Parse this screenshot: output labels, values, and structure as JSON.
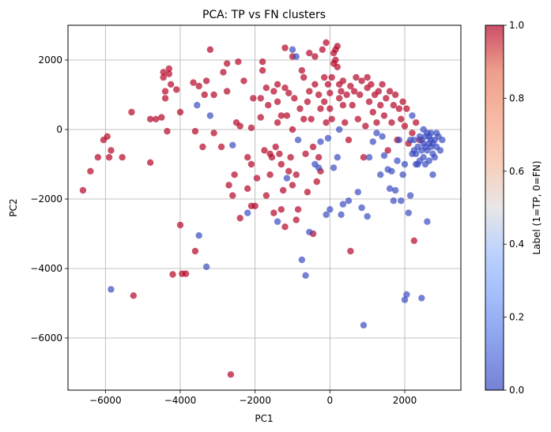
{
  "chart_data": {
    "type": "scatter",
    "title": "PCA: TP vs FN clusters",
    "xlabel": "PC1",
    "ylabel": "PC2",
    "xlim": [
      -7000,
      3500
    ],
    "ylim": [
      -7500,
      3000
    ],
    "xticks": [
      -6000,
      -4000,
      -2000,
      0,
      2000
    ],
    "yticks": [
      -6000,
      -4000,
      -2000,
      0,
      2000
    ],
    "xtick_labels": [
      "−6000",
      "−4000",
      "−2000",
      "0",
      "2000"
    ],
    "ytick_labels": [
      "−6000",
      "−4000",
      "−2000",
      "0",
      "2000"
    ],
    "grid": true,
    "colorbar": {
      "label": "Label (1=TP, 0=FN)",
      "range": [
        0,
        1
      ],
      "ticks": [
        0.0,
        0.2,
        0.4,
        0.6,
        0.8,
        1.0
      ],
      "tick_labels": [
        "0.0",
        "0.2",
        "0.4",
        "0.6",
        "0.8",
        "1.0"
      ],
      "colormap": "coolwarm",
      "color_low": "#3b4cc0",
      "color_high": "#b40426"
    },
    "series": [
      {
        "label_value": 1,
        "color": "#b40426",
        "points": [
          [
            -6600,
            -1750
          ],
          [
            -6400,
            -1200
          ],
          [
            -6200,
            -800
          ],
          [
            -6050,
            -300
          ],
          [
            -5950,
            -200
          ],
          [
            -5900,
            -800
          ],
          [
            -5850,
            -600
          ],
          [
            -5550,
            -800
          ],
          [
            -5300,
            500
          ],
          [
            -5250,
            -4780
          ],
          [
            -4800,
            -950
          ],
          [
            -4800,
            300
          ],
          [
            -4650,
            300
          ],
          [
            -4500,
            350
          ],
          [
            -4450,
            1500
          ],
          [
            -4450,
            1650
          ],
          [
            -4400,
            1100
          ],
          [
            -4400,
            900
          ],
          [
            -4350,
            -50
          ],
          [
            -4300,
            1750
          ],
          [
            -4300,
            1600
          ],
          [
            -4250,
            1300
          ],
          [
            -4200,
            -4170
          ],
          [
            -4100,
            1150
          ],
          [
            -4000,
            500
          ],
          [
            -4000,
            -2750
          ],
          [
            -3950,
            -4150
          ],
          [
            -3850,
            -4150
          ],
          [
            -3650,
            1350
          ],
          [
            -3600,
            -50
          ],
          [
            -3600,
            -3500
          ],
          [
            -3500,
            1250
          ],
          [
            -3400,
            -500
          ],
          [
            -3350,
            1000
          ],
          [
            -3300,
            1400
          ],
          [
            -3200,
            2300
          ],
          [
            -3100,
            1000
          ],
          [
            -3100,
            -100
          ],
          [
            -2900,
            -500
          ],
          [
            -2850,
            1650
          ],
          [
            -2750,
            1100
          ],
          [
            -2750,
            1900
          ],
          [
            -2700,
            -1600
          ],
          [
            -2650,
            -7050
          ],
          [
            -2600,
            -1900
          ],
          [
            -2550,
            -1300
          ],
          [
            -2500,
            200
          ],
          [
            -2450,
            1950
          ],
          [
            -2400,
            -2550
          ],
          [
            -2400,
            100
          ],
          [
            -2300,
            1400
          ],
          [
            -2200,
            -800
          ],
          [
            -2200,
            -1700
          ],
          [
            -2100,
            -2200
          ],
          [
            -2100,
            -1000
          ],
          [
            -2100,
            50
          ],
          [
            -2050,
            900
          ],
          [
            -2000,
            -2200
          ],
          [
            -1950,
            -1400
          ],
          [
            -1850,
            350
          ],
          [
            -1850,
            900
          ],
          [
            -1800,
            1950
          ],
          [
            -1800,
            1700
          ],
          [
            -1750,
            -600
          ],
          [
            -1700,
            1200
          ],
          [
            -1700,
            -1900
          ],
          [
            -1650,
            700
          ],
          [
            -1600,
            -1300
          ],
          [
            -1600,
            -700
          ],
          [
            -1550,
            -800
          ],
          [
            -1500,
            -2400
          ],
          [
            -1500,
            1100
          ],
          [
            -1450,
            -500
          ],
          [
            -1400,
            200
          ],
          [
            -1400,
            800
          ],
          [
            -1400,
            1300
          ],
          [
            -1350,
            -700
          ],
          [
            -1300,
            -2300
          ],
          [
            -1300,
            400
          ],
          [
            -1300,
            -1000
          ],
          [
            -1250,
            -1750
          ],
          [
            -1200,
            2350
          ],
          [
            -1200,
            1200
          ],
          [
            -1200,
            -2800
          ],
          [
            -1150,
            400
          ],
          [
            -1100,
            -1200
          ],
          [
            -1100,
            1050
          ],
          [
            -1050,
            -800
          ],
          [
            -1000,
            2100
          ],
          [
            -1000,
            -1600
          ],
          [
            -1000,
            0
          ],
          [
            -950,
            900
          ],
          [
            -900,
            -1300
          ],
          [
            -900,
            -2600
          ],
          [
            -850,
            -2300
          ],
          [
            -800,
            600
          ],
          [
            -750,
            1700
          ],
          [
            -700,
            300
          ],
          [
            -700,
            1500
          ],
          [
            -650,
            -700
          ],
          [
            -600,
            -1800
          ],
          [
            -600,
            800
          ],
          [
            -550,
            2200
          ],
          [
            -550,
            1100
          ],
          [
            -500,
            300
          ],
          [
            -450,
            -500
          ],
          [
            -450,
            -3000
          ],
          [
            -400,
            1300
          ],
          [
            -400,
            2100
          ],
          [
            -350,
            -1500
          ],
          [
            -300,
            1000
          ],
          [
            -300,
            -800
          ],
          [
            -250,
            600
          ],
          [
            -250,
            -1200
          ],
          [
            -200,
            2300
          ],
          [
            -150,
            1500
          ],
          [
            -150,
            800
          ],
          [
            -100,
            2500
          ],
          [
            -100,
            200
          ],
          [
            -50,
            1300
          ],
          [
            0,
            1050
          ],
          [
            0,
            600
          ],
          [
            50,
            1500
          ],
          [
            50,
            300
          ],
          [
            100,
            1900
          ],
          [
            100,
            2200
          ],
          [
            150,
            2000
          ],
          [
            150,
            2300
          ],
          [
            200,
            1800
          ],
          [
            200,
            2400
          ],
          [
            250,
            1300
          ],
          [
            250,
            900
          ],
          [
            300,
            1100
          ],
          [
            350,
            1400
          ],
          [
            350,
            700
          ],
          [
            400,
            200
          ],
          [
            450,
            1000
          ],
          [
            500,
            -300
          ],
          [
            550,
            1250
          ],
          [
            550,
            -3500
          ],
          [
            600,
            700
          ],
          [
            650,
            1100
          ],
          [
            700,
            1500
          ],
          [
            750,
            300
          ],
          [
            800,
            1000
          ],
          [
            850,
            1400
          ],
          [
            900,
            -800
          ],
          [
            950,
            100
          ],
          [
            1000,
            1500
          ],
          [
            1000,
            1200
          ],
          [
            1050,
            800
          ],
          [
            1100,
            1300
          ],
          [
            1150,
            500
          ],
          [
            1200,
            1000
          ],
          [
            1250,
            200
          ],
          [
            1300,
            1100
          ],
          [
            1350,
            700
          ],
          [
            1400,
            1300
          ],
          [
            1450,
            400
          ],
          [
            1500,
            900
          ],
          [
            1550,
            -600
          ],
          [
            1600,
            1100
          ],
          [
            1650,
            200
          ],
          [
            1700,
            700
          ],
          [
            1750,
            1000
          ],
          [
            1800,
            -300
          ],
          [
            1850,
            600
          ],
          [
            1900,
            300
          ],
          [
            1950,
            800
          ],
          [
            2000,
            100
          ],
          [
            2050,
            600
          ],
          [
            2100,
            -400
          ],
          [
            2200,
            -100
          ],
          [
            2250,
            -3200
          ],
          [
            2300,
            200
          ],
          [
            2400,
            -300
          ]
        ]
      },
      {
        "label_value": 0,
        "color": "#3b4cc0",
        "points": [
          [
            -5850,
            -4600
          ],
          [
            -3500,
            -3050
          ],
          [
            -3300,
            -3950
          ],
          [
            -3200,
            400
          ],
          [
            -3550,
            700
          ],
          [
            -2600,
            -450
          ],
          [
            -2200,
            -2400
          ],
          [
            -1400,
            -2650
          ],
          [
            -1150,
            -1400
          ],
          [
            -1000,
            2300
          ],
          [
            -900,
            2100
          ],
          [
            -850,
            -300
          ],
          [
            -750,
            -3750
          ],
          [
            -650,
            -4200
          ],
          [
            -550,
            -2950
          ],
          [
            -400,
            -1000
          ],
          [
            -300,
            -1100
          ],
          [
            -250,
            -350
          ],
          [
            -100,
            -2450
          ],
          [
            -50,
            -250
          ],
          [
            0,
            -2300
          ],
          [
            100,
            -1100
          ],
          [
            200,
            -800
          ],
          [
            250,
            0
          ],
          [
            300,
            -2450
          ],
          [
            350,
            -2150
          ],
          [
            500,
            -2050
          ],
          [
            750,
            -1800
          ],
          [
            850,
            -2250
          ],
          [
            900,
            -5630
          ],
          [
            1000,
            -2500
          ],
          [
            1050,
            -800
          ],
          [
            1150,
            -350
          ],
          [
            1250,
            -100
          ],
          [
            1350,
            -1300
          ],
          [
            1400,
            -200
          ],
          [
            1450,
            -750
          ],
          [
            1550,
            -1150
          ],
          [
            1600,
            -1700
          ],
          [
            1650,
            -1200
          ],
          [
            1700,
            -2050
          ],
          [
            1750,
            -1750
          ],
          [
            1800,
            -900
          ],
          [
            1850,
            -300
          ],
          [
            1900,
            -2050
          ],
          [
            1950,
            -1300
          ],
          [
            2000,
            -1000
          ],
          [
            2000,
            -4900
          ],
          [
            2050,
            -4750
          ],
          [
            2100,
            -2400
          ],
          [
            2150,
            -1900
          ],
          [
            2200,
            -700
          ],
          [
            2250,
            -300
          ],
          [
            2300,
            -1000
          ],
          [
            2350,
            -500
          ],
          [
            2400,
            -200
          ],
          [
            2450,
            -4850
          ],
          [
            2500,
            -800
          ],
          [
            2550,
            -1000
          ],
          [
            2600,
            -600
          ],
          [
            2600,
            -2650
          ],
          [
            2650,
            -400
          ],
          [
            2700,
            -100
          ],
          [
            2750,
            -700
          ],
          [
            2750,
            -1300
          ],
          [
            2800,
            -300
          ],
          [
            2850,
            -500
          ],
          [
            2900,
            -200
          ],
          [
            2950,
            -600
          ],
          [
            3000,
            -300
          ],
          [
            2450,
            -600
          ],
          [
            2500,
            -400
          ],
          [
            2550,
            -200
          ],
          [
            2650,
            -900
          ],
          [
            2700,
            -500
          ],
          [
            2800,
            -800
          ],
          [
            2350,
            -1000
          ],
          [
            2250,
            -600
          ],
          [
            2150,
            -300
          ],
          [
            2400,
            -900
          ],
          [
            2500,
            0
          ],
          [
            2600,
            -100
          ],
          [
            2700,
            -300
          ],
          [
            2450,
            -300
          ],
          [
            2200,
            400
          ],
          [
            2300,
            -700
          ],
          [
            2550,
            -500
          ],
          [
            2650,
            -200
          ],
          [
            2750,
            -400
          ],
          [
            2850,
            -100
          ]
        ]
      }
    ]
  }
}
